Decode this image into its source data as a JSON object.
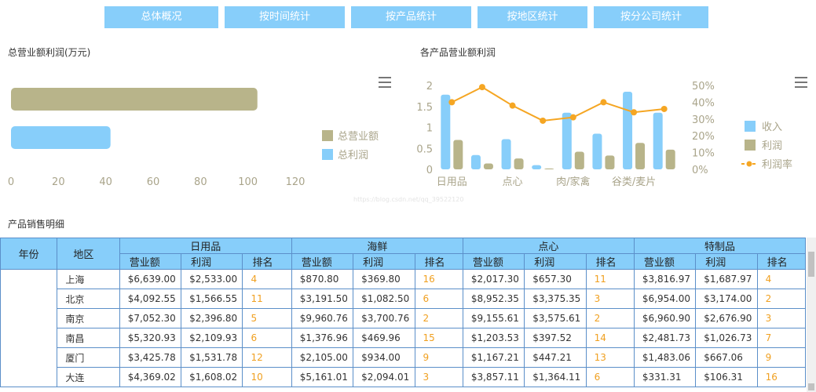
{
  "nav": [
    {
      "label": "总体概况"
    },
    {
      "label": "按时间统计"
    },
    {
      "label": "按产品统计"
    },
    {
      "label": "按地区统计"
    },
    {
      "label": "按分公司统计"
    }
  ],
  "chart_left": {
    "title": "总营业额利润(万元)",
    "legend": [
      {
        "label": "总营业额",
        "color": "#b8b48a"
      },
      {
        "label": "总利润",
        "color": "#87cefa"
      }
    ],
    "menu_icon": "menu-icon"
  },
  "chart_right": {
    "title": "各产品营业额利润",
    "legend": [
      {
        "label": "收入",
        "color": "#87cefa"
      },
      {
        "label": "利润",
        "color": "#b8b48a"
      },
      {
        "label": "利润率",
        "color": "#f5a623"
      }
    ],
    "menu_icon": "menu-icon"
  },
  "watermark": "https://blog.csdn.net/qq_39522120",
  "chart_data": [
    {
      "type": "bar",
      "orientation": "horizontal",
      "categories": [
        "总营业额",
        "总利润"
      ],
      "values": [
        104,
        42
      ],
      "xlim": [
        0,
        120
      ],
      "xticks": [
        "0",
        "20",
        "40",
        "60",
        "80",
        "100",
        "120"
      ],
      "colors": [
        "#b8b48a",
        "#87cefa"
      ],
      "legend_position": "right"
    },
    {
      "type": "bar",
      "categories": [
        "日用品",
        "",
        "点心",
        "",
        "肉/家禽",
        "",
        "谷类/麦片",
        ""
      ],
      "xtick_labels": [
        "日用品",
        "点心",
        "肉/家禽",
        "谷类/麦片"
      ],
      "series": [
        {
          "name": "收入",
          "color": "#87cefa",
          "values": [
            1.78,
            0.34,
            0.72,
            0.1,
            1.35,
            0.85,
            1.85,
            1.35
          ]
        },
        {
          "name": "利润",
          "color": "#b8b48a",
          "values": [
            0.7,
            0.14,
            0.26,
            0.02,
            0.42,
            0.33,
            0.63,
            0.47
          ]
        },
        {
          "name": "利润率",
          "color": "#f5a623",
          "line": true,
          "axis": "right",
          "values": [
            40,
            49,
            38,
            29,
            31,
            40,
            34,
            36
          ]
        }
      ],
      "ylim": [
        0,
        2
      ],
      "yticks": [
        "0",
        "0.5",
        "1",
        "1.5",
        "2"
      ],
      "y2lim": [
        0,
        50
      ],
      "y2ticks": [
        "0%",
        "10%",
        "20%",
        "30%",
        "40%",
        "50%"
      ],
      "legend_position": "right"
    }
  ],
  "table": {
    "title": "产品销售明细",
    "year_header": "年份",
    "region_header": "地区",
    "groups": [
      "日用品",
      "海鲜",
      "点心",
      "特制品"
    ],
    "sub_headers": [
      "营业额",
      "利润",
      "排名"
    ],
    "rows": [
      {
        "region": "上海",
        "cells": [
          "$6,639.00",
          "$2,533.00",
          "4",
          "$870.80",
          "$369.80",
          "16",
          "$2,017.30",
          "$657.30",
          "11",
          "$3,816.97",
          "$1,687.97",
          "4"
        ]
      },
      {
        "region": "北京",
        "cells": [
          "$4,092.55",
          "$1,566.55",
          "11",
          "$3,191.50",
          "$1,082.50",
          "6",
          "$8,952.35",
          "$3,375.35",
          "3",
          "$6,954.00",
          "$3,174.00",
          "2"
        ]
      },
      {
        "region": "南京",
        "cells": [
          "$7,052.30",
          "$2,396.80",
          "5",
          "$9,960.76",
          "$3,700.76",
          "2",
          "$9,155.61",
          "$3,575.61",
          "2",
          "$6,960.90",
          "$2,676.90",
          "3"
        ]
      },
      {
        "region": "南昌",
        "cells": [
          "$5,320.93",
          "$2,109.93",
          "6",
          "$1,376.96",
          "$469.96",
          "15",
          "$1,203.53",
          "$397.52",
          "14",
          "$2,481.73",
          "$1,026.73",
          "7"
        ]
      },
      {
        "region": "厦门",
        "cells": [
          "$3,425.78",
          "$1,531.78",
          "12",
          "$2,105.00",
          "$934.00",
          "9",
          "$1,167.21",
          "$447.21",
          "13",
          "$1,483.06",
          "$667.06",
          "9"
        ]
      },
      {
        "region": "大连",
        "cells": [
          "$4,369.02",
          "$1,608.02",
          "10",
          "$5,161.01",
          "$2,094.01",
          "3",
          "$3,857.11",
          "$1,364.11",
          "6",
          "$331.31",
          "$106.31",
          "16"
        ]
      }
    ]
  }
}
